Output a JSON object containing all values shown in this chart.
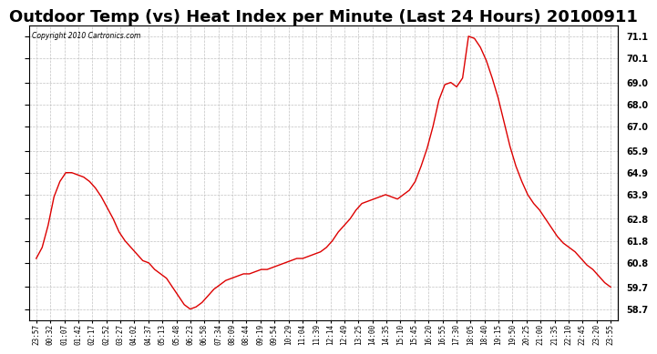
{
  "title": "Outdoor Temp (vs) Heat Index per Minute (Last 24 Hours) 20100911",
  "copyright": "Copyright 2010 Cartronics.com",
  "yticks": [
    58.7,
    59.7,
    60.8,
    61.8,
    62.8,
    63.9,
    64.9,
    65.9,
    67.0,
    68.0,
    69.0,
    70.1,
    71.1
  ],
  "ymin": 58.2,
  "ymax": 71.6,
  "line_color": "#dd0000",
  "background_color": "#ffffff",
  "grid_color": "#bbbbbb",
  "title_fontsize": 13,
  "x_labels": [
    "23:57",
    "00:32",
    "01:07",
    "01:42",
    "02:17",
    "02:52",
    "03:27",
    "04:02",
    "04:37",
    "05:13",
    "05:48",
    "06:23",
    "06:58",
    "07:34",
    "08:09",
    "08:44",
    "09:19",
    "09:54",
    "10:29",
    "11:04",
    "11:39",
    "12:14",
    "12:49",
    "13:25",
    "14:00",
    "14:35",
    "15:10",
    "15:45",
    "16:20",
    "16:55",
    "17:30",
    "18:05",
    "18:40",
    "19:15",
    "19:50",
    "20:25",
    "21:00",
    "21:35",
    "22:10",
    "22:45",
    "23:20",
    "23:55"
  ],
  "y_values": [
    61.0,
    61.5,
    62.5,
    63.8,
    64.5,
    64.9,
    64.9,
    64.8,
    64.7,
    64.5,
    64.2,
    63.8,
    63.3,
    62.8,
    62.2,
    61.8,
    61.5,
    61.2,
    60.9,
    60.8,
    60.5,
    60.3,
    60.1,
    59.7,
    59.3,
    58.9,
    58.7,
    58.8,
    59.0,
    59.3,
    59.6,
    59.8,
    60.0,
    60.1,
    60.2,
    60.3,
    60.3,
    60.4,
    60.5,
    60.5,
    60.6,
    60.7,
    60.8,
    60.9,
    61.0,
    61.0,
    61.1,
    61.2,
    61.3,
    61.5,
    61.8,
    62.2,
    62.5,
    62.8,
    63.2,
    63.5,
    63.6,
    63.7,
    63.8,
    63.9,
    63.8,
    63.7,
    63.9,
    64.1,
    64.5,
    65.2,
    66.0,
    67.0,
    68.2,
    68.9,
    69.0,
    68.8,
    69.2,
    71.1,
    71.0,
    70.6,
    70.0,
    69.2,
    68.3,
    67.2,
    66.1,
    65.2,
    64.5,
    63.9,
    63.5,
    63.2,
    62.8,
    62.4,
    62.0,
    61.7,
    61.5,
    61.3,
    61.0,
    60.7,
    60.5,
    60.2,
    59.9,
    59.7
  ]
}
